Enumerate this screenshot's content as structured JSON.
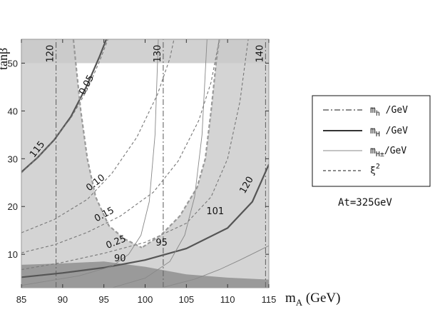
{
  "chart_data": {
    "type": "line",
    "xlabel": "m_A (GeV)",
    "ylabel": "tanβ",
    "xlim": [
      85,
      115
    ],
    "ylim": [
      3,
      55
    ],
    "x_ticks": [
      85,
      90,
      95,
      100,
      105,
      110,
      115
    ],
    "y_ticks": [
      10,
      20,
      30,
      40,
      50
    ],
    "grid": false,
    "colors": {
      "excluded": "#d4d4d4",
      "top_band": "#c9c9c9",
      "dark_region": "#8f8f8f",
      "allowed": "#ffffff",
      "frame": "#999999"
    },
    "regions": [
      {
        "name": "xi2-allowed",
        "boundary_left": [
          [
            91.3,
            55
          ],
          [
            91.6,
            50
          ],
          [
            92.2,
            40
          ],
          [
            93.0,
            30
          ],
          [
            94.0,
            22
          ],
          [
            95.6,
            16
          ],
          [
            97.5,
            13.2
          ],
          [
            99.6,
            11.4
          ]
        ],
        "boundary_right": [
          [
            109.0,
            55
          ],
          [
            108.6,
            50
          ],
          [
            108.0,
            40
          ],
          [
            107.3,
            30
          ],
          [
            106.3,
            24
          ],
          [
            104.2,
            18
          ],
          [
            101.9,
            14
          ],
          [
            99.6,
            11.4
          ]
        ]
      },
      {
        "name": "dark-excluded",
        "boundary": [
          [
            85,
            7.8
          ],
          [
            90,
            8.1
          ],
          [
            95,
            8.5
          ],
          [
            100,
            7.4
          ],
          [
            105,
            5.8
          ],
          [
            110,
            5.1
          ],
          [
            115,
            4.7
          ]
        ]
      }
    ],
    "series": [
      {
        "name": "m_h /GeV",
        "style": "dash-dot",
        "contours": [
          {
            "label": "120",
            "points": [
              [
                89.2,
                3
              ],
              [
                89.2,
                55
              ]
            ]
          },
          {
            "label": "130",
            "points": [
              [
                102.2,
                3
              ],
              [
                102.2,
                55
              ]
            ]
          },
          {
            "label": "140",
            "points": [
              [
                114.6,
                3
              ],
              [
                114.6,
                55
              ]
            ]
          }
        ]
      },
      {
        "name": "m_H /GeV",
        "style": "solid",
        "contours": [
          {
            "label": "115",
            "points": [
              [
                85,
                27.2
              ],
              [
                87,
                30.3
              ],
              [
                89,
                34.0
              ],
              [
                91,
                38.8
              ],
              [
                93,
                45.5
              ],
              [
                94.5,
                51.5
              ],
              [
                95.3,
                55
              ]
            ]
          },
          {
            "label": "120",
            "points": [
              [
                85,
                5.2
              ],
              [
                90,
                6.1
              ],
              [
                95,
                7.2
              ],
              [
                100,
                8.8
              ],
              [
                105,
                11.2
              ],
              [
                110,
                15.5
              ],
              [
                113,
                21.0
              ],
              [
                115,
                28.8
              ]
            ]
          }
        ]
      },
      {
        "name": "m_H± /GeV",
        "style": "thin-solid",
        "contours": [
          {
            "label": "90",
            "points": [
              [
                85,
                3.5
              ],
              [
                92,
                5.5
              ],
              [
                96,
                7.5
              ],
              [
                98,
                10.0
              ],
              [
                99.5,
                14.0
              ],
              [
                100.5,
                21.0
              ],
              [
                101.2,
                35.0
              ],
              [
                101.6,
                55
              ]
            ]
          },
          {
            "label": "95",
            "points": [
              [
                96,
                3.0
              ],
              [
                100,
                5.0
              ],
              [
                103,
                8.5
              ],
              [
                104.8,
                14.0
              ],
              [
                106.0,
                22.0
              ],
              [
                106.9,
                35.0
              ],
              [
                107.5,
                55
              ]
            ]
          },
          {
            "label": "101",
            "points": [
              [
                102,
                3.0
              ],
              [
                106,
                4.8
              ],
              [
                109,
                6.8
              ],
              [
                111.5,
                8.8
              ],
              [
                113.5,
                10.5
              ],
              [
                115,
                11.8
              ]
            ]
          }
        ]
      },
      {
        "name": "ξ²",
        "style": "dashed",
        "contours": [
          {
            "label": "0.05",
            "points": [
              [
                85,
                27.0
              ],
              [
                88,
                32.0
              ],
              [
                91,
                38.5
              ],
              [
                93,
                44.5
              ],
              [
                94.5,
                50.5
              ],
              [
                95.5,
                55
              ]
            ]
          },
          {
            "label": "0.10",
            "points": [
              [
                85,
                14.5
              ],
              [
                89,
                17.3
              ],
              [
                93,
                21.5
              ],
              [
                96,
                27.0
              ],
              [
                99,
                34.5
              ],
              [
                101.5,
                43.5
              ],
              [
                103,
                51.0
              ],
              [
                103.5,
                55
              ]
            ]
          },
          {
            "label": "0.15",
            "points": [
              [
                85,
                10.3
              ],
              [
                89,
                12.0
              ],
              [
                93,
                14.6
              ],
              [
                97,
                18.0
              ],
              [
                101,
                23.0
              ],
              [
                104,
                29.5
              ],
              [
                106.5,
                38.0
              ],
              [
                108,
                46.0
              ],
              [
                109,
                55
              ]
            ]
          },
          {
            "label": "0.25",
            "points": [
              [
                85,
                6.8
              ],
              [
                90,
                8.3
              ],
              [
                95,
                10.2
              ],
              [
                100,
                12.5
              ],
              [
                105,
                16.5
              ],
              [
                108,
                22.0
              ],
              [
                110,
                30.0
              ],
              [
                111.5,
                42.0
              ],
              [
                112.5,
                55
              ]
            ]
          }
        ]
      }
    ],
    "legend": {
      "placement": "right",
      "entries": [
        {
          "label": "m_h /GeV",
          "style": "dash-dot"
        },
        {
          "label": "m_H /GeV",
          "style": "solid"
        },
        {
          "label": "m_H± /GeV",
          "style": "thin-solid"
        },
        {
          "label": "ξ²",
          "style": "dashed"
        }
      ]
    },
    "annotations": [
      "At=325GeV"
    ]
  },
  "labels": {
    "y_axis": "tanβ",
    "x_axis_main": "m",
    "x_axis_sub": "A",
    "x_axis_unit": " (GeV)",
    "legend_mh_main": "m",
    "legend_mh_sub": "h",
    "legend_mh_unit": " /GeV",
    "legend_mH_main": "m",
    "legend_mH_sub": "H",
    "legend_mH_unit": " /GeV",
    "legend_mHpm_main": "m",
    "legend_mHpm_sub": "H±",
    "legend_mHpm_unit": "/GeV",
    "legend_xi_main": "ξ",
    "legend_xi_sup": "2",
    "note": "At=325GeV"
  }
}
